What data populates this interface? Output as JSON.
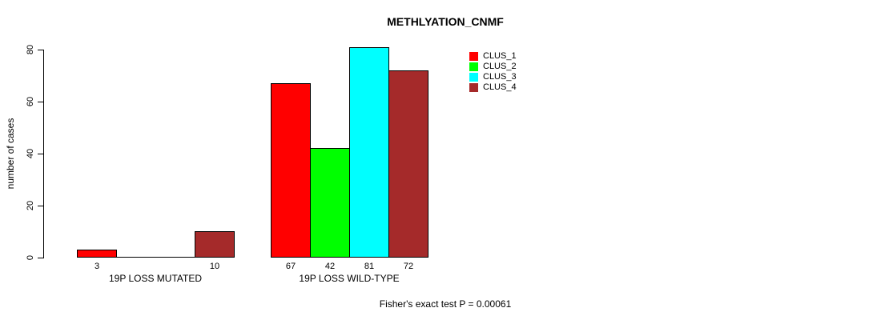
{
  "chart_data": {
    "type": "bar",
    "title": "METHLYATION_CNMF",
    "xlabel": "",
    "ylabel": "number of cases",
    "ylim": [
      0,
      80
    ],
    "yticks": [
      0,
      20,
      40,
      60,
      80
    ],
    "grid": false,
    "legend_position": "top-right-outside-plot",
    "categories": [
      "19P LOSS MUTATED",
      "19P LOSS WILD-TYPE"
    ],
    "series": [
      {
        "name": "CLUS_1",
        "color": "#FF0000",
        "values": [
          3,
          67
        ]
      },
      {
        "name": "CLUS_2",
        "color": "#00FF00",
        "values": [
          0,
          42
        ]
      },
      {
        "name": "CLUS_3",
        "color": "#00FFFF",
        "values": [
          0,
          81
        ]
      },
      {
        "name": "CLUS_4",
        "color": "#A52A2A",
        "values": [
          10,
          72
        ]
      }
    ],
    "visible_bar_value_labels": [
      "3",
      "10",
      "67",
      "42",
      "81",
      "72"
    ],
    "annotation": "Fisher's exact test P = 0.00061",
    "bar_border_color": "#000000"
  }
}
